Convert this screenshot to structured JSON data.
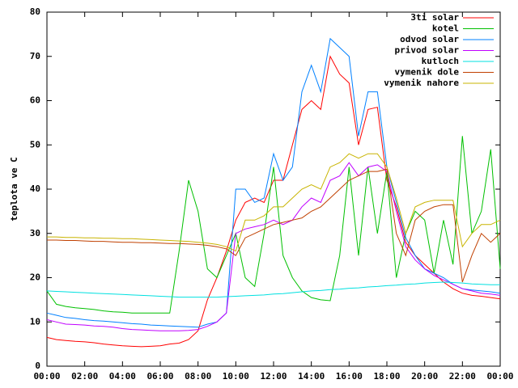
{
  "chart_data": {
    "type": "line",
    "ylabel": "teplota ve C",
    "x": [
      0,
      0.5,
      1,
      1.5,
      2,
      2.5,
      3,
      3.5,
      4,
      4.5,
      5,
      5.5,
      6,
      6.5,
      7,
      7.5,
      8,
      8.5,
      9,
      9.5,
      10,
      10.5,
      11,
      11.5,
      12,
      12.5,
      13,
      13.5,
      14,
      14.5,
      15,
      15.5,
      16,
      16.5,
      17,
      17.5,
      18,
      18.5,
      19,
      19.5,
      20,
      20.5,
      21,
      21.5,
      22,
      22.5,
      23,
      23.5,
      24
    ],
    "xlim": [
      0,
      24
    ],
    "xticks": [
      {
        "value": 0,
        "label": "00:00"
      },
      {
        "value": 2,
        "label": "02:00"
      },
      {
        "value": 4,
        "label": "04:00"
      },
      {
        "value": 6,
        "label": "06:00"
      },
      {
        "value": 8,
        "label": "08:00"
      },
      {
        "value": 10,
        "label": "10:00"
      },
      {
        "value": 12,
        "label": "12:00"
      },
      {
        "value": 14,
        "label": "14:00"
      },
      {
        "value": 16,
        "label": "16:00"
      },
      {
        "value": 18,
        "label": "18:00"
      },
      {
        "value": 20,
        "label": "20:00"
      },
      {
        "value": 22,
        "label": "22:00"
      },
      {
        "value": 24,
        "label": "00:00"
      }
    ],
    "ylim": [
      0,
      80
    ],
    "yticks": [
      0,
      10,
      20,
      30,
      40,
      50,
      60,
      70,
      80
    ],
    "legend": "top-right",
    "series": [
      {
        "name": "3ti solar",
        "color": "#ff0000",
        "values": [
          6.5,
          6,
          5.8,
          5.6,
          5.5,
          5.3,
          5,
          4.8,
          4.6,
          4.5,
          4.4,
          4.5,
          4.6,
          5,
          5.2,
          6,
          8,
          15,
          20,
          26,
          33,
          37,
          38,
          37,
          42,
          42,
          50,
          58,
          60,
          58,
          70,
          66,
          64,
          50,
          58,
          58.5,
          42,
          36,
          28,
          25,
          23,
          21,
          19,
          17.5,
          16.5,
          16,
          15.8,
          15.5,
          15.2
        ]
      },
      {
        "name": "kotel",
        "color": "#00c000",
        "values": [
          17,
          14,
          13.5,
          13.2,
          13,
          12.8,
          12.5,
          12.3,
          12.2,
          12,
          12,
          12,
          12,
          12,
          26,
          42,
          35,
          22,
          20,
          25,
          30,
          20,
          18,
          30,
          45,
          25,
          20,
          17,
          15.5,
          15,
          14.8,
          25,
          45,
          25,
          45,
          30,
          44,
          20,
          30,
          35,
          33,
          21,
          33,
          23,
          52,
          30,
          35,
          49,
          22
        ]
      },
      {
        "name": "odvod solar",
        "color": "#0080ff",
        "values": [
          12,
          11.5,
          11,
          10.8,
          10.5,
          10.3,
          10.2,
          10,
          9.8,
          9.6,
          9.5,
          9.3,
          9.2,
          9.1,
          9,
          8.9,
          8.8,
          9.5,
          10,
          12,
          40,
          40,
          37,
          38,
          48,
          42,
          45,
          62,
          68,
          62,
          74,
          72,
          70,
          52,
          62,
          62,
          45,
          37,
          29,
          25,
          22,
          21,
          20,
          18.5,
          17.5,
          17.2,
          17,
          16.8,
          16.5
        ]
      },
      {
        "name": "privod solar",
        "color": "#c000ff",
        "values": [
          10.5,
          10,
          9.5,
          9.4,
          9.3,
          9.1,
          9,
          8.8,
          8.5,
          8.3,
          8.2,
          8.1,
          8,
          8,
          8,
          8.1,
          8.3,
          9,
          10,
          12,
          30,
          31,
          31.5,
          32,
          33,
          32,
          33,
          36,
          38,
          37,
          42,
          43,
          46,
          43,
          45,
          45.5,
          44,
          35,
          27,
          24,
          22,
          20.5,
          19.5,
          18.5,
          17.5,
          17,
          16.5,
          16.3,
          16
        ]
      },
      {
        "name": "kutloch",
        "color": "#00e0e0",
        "values": [
          17,
          16.9,
          16.8,
          16.7,
          16.6,
          16.5,
          16.4,
          16.3,
          16.2,
          16.1,
          16,
          15.9,
          15.8,
          15.7,
          15.6,
          15.6,
          15.6,
          15.6,
          15.6,
          15.7,
          15.8,
          15.9,
          16,
          16.1,
          16.3,
          16.4,
          16.6,
          16.8,
          17,
          17.1,
          17.3,
          17.4,
          17.6,
          17.7,
          17.9,
          18,
          18.2,
          18.3,
          18.5,
          18.6,
          18.8,
          18.9,
          19,
          18.9,
          18.8,
          18.6,
          18.5,
          18.4,
          18.4
        ]
      },
      {
        "name": "vymenik dole",
        "color": "#c04000",
        "values": [
          28.5,
          28.5,
          28.4,
          28.4,
          28.3,
          28.2,
          28.2,
          28.1,
          28,
          28,
          27.9,
          27.9,
          27.8,
          27.7,
          27.7,
          27.6,
          27.5,
          27.3,
          27,
          26.5,
          25,
          29,
          30,
          31,
          32,
          32.5,
          33,
          33.5,
          35,
          36,
          38,
          40,
          42,
          43,
          44,
          44,
          44.5,
          30,
          25,
          33,
          35,
          36,
          36.5,
          36.5,
          19,
          25,
          30,
          28,
          30
        ]
      },
      {
        "name": "vymenik nahore",
        "color": "#c8b400",
        "values": [
          29.2,
          29.2,
          29.1,
          29.1,
          29,
          29,
          28.9,
          28.9,
          28.8,
          28.8,
          28.7,
          28.6,
          28.5,
          28.4,
          28.3,
          28.2,
          28,
          27.8,
          27.5,
          27,
          26,
          33,
          33,
          34,
          36,
          36,
          38,
          40,
          41,
          40,
          45,
          46,
          48,
          47,
          48,
          48,
          45,
          38,
          30,
          36,
          37,
          37.5,
          37.5,
          37.5,
          27,
          30,
          32,
          32,
          33
        ]
      }
    ]
  }
}
